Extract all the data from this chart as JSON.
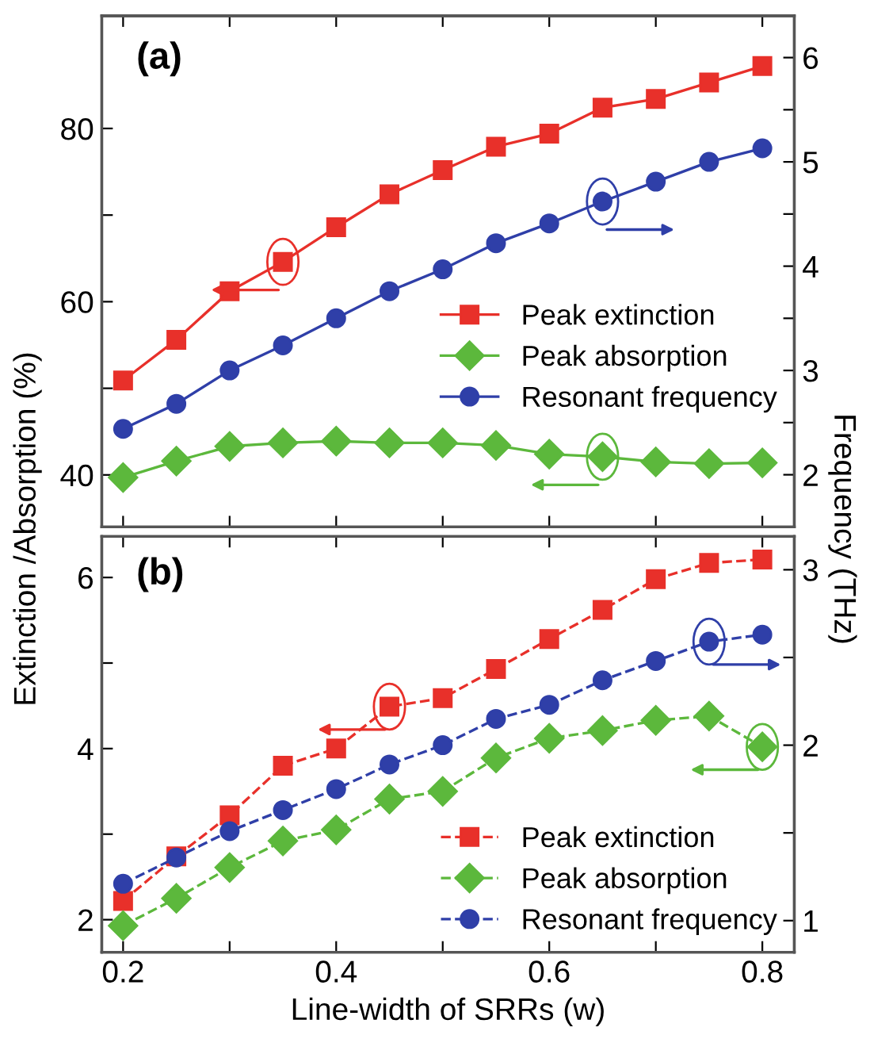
{
  "chart_data": [
    {
      "type": "line",
      "title": "(a)",
      "ylabel": "Extinction /Absorption (%)",
      "y2label": "Frequency (THz)",
      "x": [
        0.2,
        0.25,
        0.3,
        0.35,
        0.4,
        0.45,
        0.5,
        0.55,
        0.6,
        0.65,
        0.7,
        0.75,
        0.8
      ],
      "series": [
        {
          "name": "Peak extinction",
          "color": "#e8302a",
          "marker": "square",
          "values": [
            50.9,
            55.6,
            61.2,
            64.6,
            68.6,
            72.4,
            75.2,
            77.9,
            79.4,
            82.4,
            83.4,
            85.3,
            87.2
          ]
        },
        {
          "name": "Peak absorption",
          "color": "#5cb83c",
          "marker": "diamond",
          "values": [
            39.7,
            41.6,
            43.3,
            43.7,
            43.9,
            43.7,
            43.7,
            43.4,
            42.4,
            42.1,
            41.5,
            41.3,
            41.4
          ]
        },
        {
          "name": "Resonant frequency",
          "color": "#2f3fa8",
          "marker": "circle",
          "axis": "y2",
          "values": [
            2.44,
            2.68,
            3.0,
            3.24,
            3.5,
            3.76,
            3.97,
            4.22,
            4.41,
            4.62,
            4.81,
            5.0,
            5.13
          ]
        }
      ],
      "xlim": [
        0.18,
        0.83
      ],
      "xticks": [
        0.2,
        {
          "value": 0.3,
          "label": null
        },
        0.4,
        {
          "value": 0.5,
          "label": null
        },
        0.6,
        {
          "value": 0.7,
          "label": null
        },
        0.8
      ],
      "ylim": [
        34,
        93
      ],
      "yticks": [
        40,
        {
          "value": 50,
          "label": null
        },
        60,
        {
          "value": 70,
          "label": null
        },
        80
      ],
      "y2lim": [
        1.5,
        6.4
      ],
      "y2ticks": [
        2,
        {
          "value": 2.5,
          "label": null
        },
        3,
        {
          "value": 3.5,
          "label": null
        },
        4,
        {
          "value": 4.5,
          "label": null
        },
        5,
        {
          "value": 5.5,
          "label": null
        },
        6
      ],
      "tick_labels": "y",
      "line_style": "solid",
      "legend": "right",
      "grid": false
    },
    {
      "type": "line",
      "title": "(b)",
      "xlabel": "Line-width of SRRs (w)",
      "x": [
        0.2,
        0.25,
        0.3,
        0.35,
        0.4,
        0.45,
        0.5,
        0.55,
        0.6,
        0.65,
        0.7,
        0.75,
        0.8
      ],
      "series": [
        {
          "name": "Peak extinction",
          "color": "#e8302a",
          "marker": "square",
          "values": [
            2.22,
            2.74,
            3.22,
            3.8,
            4.0,
            4.49,
            4.59,
            4.93,
            5.28,
            5.62,
            5.98,
            6.17,
            6.21
          ]
        },
        {
          "name": "Peak absorption",
          "color": "#5cb83c",
          "marker": "diamond",
          "values": [
            1.93,
            2.25,
            2.61,
            2.92,
            3.05,
            3.41,
            3.5,
            3.89,
            4.12,
            4.21,
            4.33,
            4.38,
            4.02
          ]
        },
        {
          "name": "Resonant frequency",
          "color": "#2f3fa8",
          "marker": "circle",
          "axis": "y2",
          "values": [
            1.21,
            1.36,
            1.51,
            1.63,
            1.75,
            1.89,
            2.0,
            2.15,
            2.23,
            2.37,
            2.48,
            2.59,
            2.63
          ]
        }
      ],
      "xlim": [
        0.18,
        0.83
      ],
      "xticks": [
        0.2,
        {
          "value": 0.3,
          "label": null
        },
        0.4,
        {
          "value": 0.5,
          "label": null
        },
        0.6,
        {
          "value": 0.7,
          "label": null
        },
        0.8
      ],
      "ylim": [
        1.62,
        6.48
      ],
      "yticks": [
        2,
        {
          "value": 3,
          "label": null
        },
        4,
        {
          "value": 5,
          "label": null
        },
        6
      ],
      "y2lim": [
        0.82,
        3.19
      ],
      "y2ticks": [
        1,
        {
          "value": 1.5,
          "label": null
        },
        2,
        {
          "value": 2.5,
          "label": null
        },
        3
      ],
      "line_style": "dashed",
      "legend": "bottom right",
      "grid": false
    }
  ]
}
